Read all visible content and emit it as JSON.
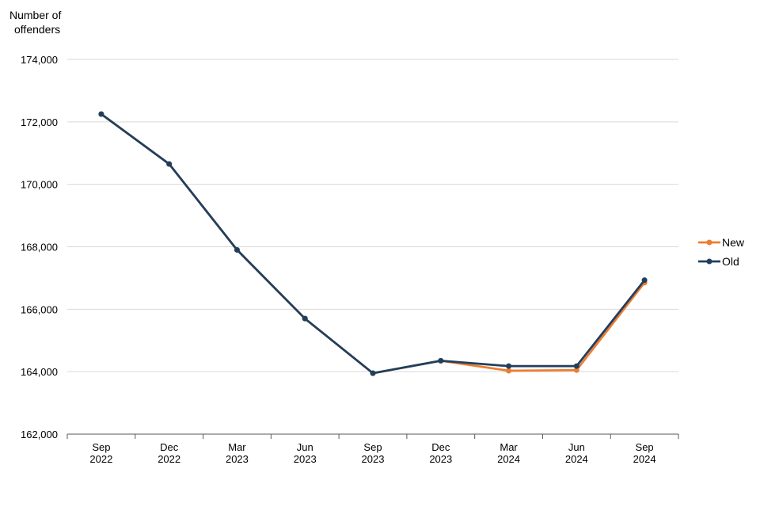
{
  "chart_data": {
    "type": "line",
    "ylabel_lines": [
      "Number of",
      "offenders"
    ],
    "xlabel": "",
    "categories": [
      [
        "Sep",
        "2022"
      ],
      [
        "Dec",
        "2022"
      ],
      [
        "Mar",
        "2023"
      ],
      [
        "Jun",
        "2023"
      ],
      [
        "Sep",
        "2023"
      ],
      [
        "Dec",
        "2023"
      ],
      [
        "Mar",
        "2024"
      ],
      [
        "Jun",
        "2024"
      ],
      [
        "Sep",
        "2024"
      ]
    ],
    "ylim": [
      162000,
      174000
    ],
    "yticks": [
      162000,
      164000,
      166000,
      168000,
      170000,
      172000,
      174000
    ],
    "ytick_labels": [
      "162,000",
      "164,000",
      "166,000",
      "168,000",
      "170,000",
      "172,000",
      "174,000"
    ],
    "grid": true,
    "legend_position": "right",
    "series": [
      {
        "name": "New",
        "color": "#ed7d31",
        "values": [
          172250,
          170650,
          167900,
          165700,
          163950,
          164350,
          164030,
          164050,
          166850
        ]
      },
      {
        "name": "Old",
        "color": "#203f5e",
        "values": [
          172250,
          170650,
          167900,
          165700,
          163950,
          164350,
          164180,
          164180,
          166930
        ]
      }
    ]
  }
}
